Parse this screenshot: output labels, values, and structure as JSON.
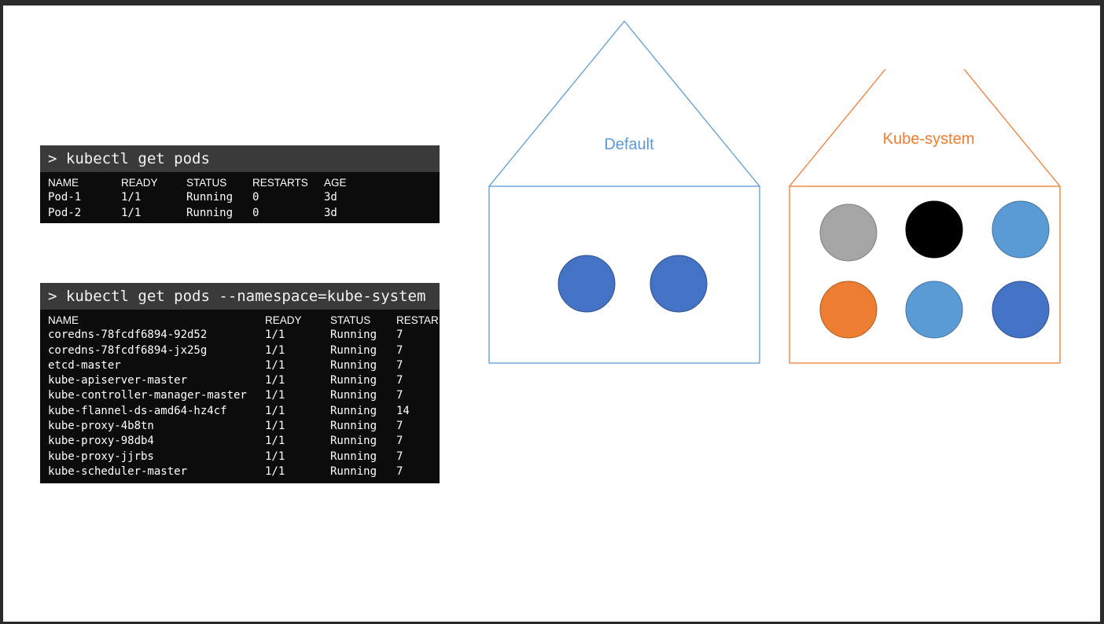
{
  "terminal1": {
    "command": "> kubectl get pods",
    "headers": [
      "NAME",
      "READY",
      "STATUS",
      "RESTARTS",
      "AGE"
    ],
    "rows": [
      [
        "Pod-1",
        "1/1",
        "Running",
        "0",
        "3d"
      ],
      [
        "Pod-2",
        "1/1",
        "Running",
        "0",
        "3d"
      ]
    ]
  },
  "terminal2": {
    "command": "> kubectl get pods --namespace=kube-system",
    "headers": [
      "NAME",
      "READY",
      "STATUS",
      "RESTAR"
    ],
    "rows": [
      [
        "coredns-78fcdf6894-92d52",
        "1/1",
        "Running",
        "7"
      ],
      [
        "coredns-78fcdf6894-jx25g",
        "1/1",
        "Running",
        "7"
      ],
      [
        "etcd-master",
        "1/1",
        "Running",
        "7"
      ],
      [
        "kube-apiserver-master",
        "1/1",
        "Running",
        "7"
      ],
      [
        "kube-controller-manager-master",
        "1/1",
        "Running",
        "7"
      ],
      [
        "kube-flannel-ds-amd64-hz4cf",
        "1/1",
        "Running",
        "14"
      ],
      [
        "kube-proxy-4b8tn",
        "1/1",
        "Running",
        "7"
      ],
      [
        "kube-proxy-98db4",
        "1/1",
        "Running",
        "7"
      ],
      [
        "kube-proxy-jjrbs",
        "1/1",
        "Running",
        "7"
      ],
      [
        "kube-scheduler-master",
        "1/1",
        "Running",
        "7"
      ]
    ]
  },
  "namespaces": {
    "default": {
      "label": "Default",
      "color": "#5b9bd5",
      "pod_colors": [
        "#4472c4",
        "#4472c4"
      ]
    },
    "kube_system": {
      "label": "Kube-system",
      "color": "#ed7d31",
      "pod_colors": [
        "#a5a5a5",
        "#000000",
        "#5b9bd5",
        "#ed7d31",
        "#5b9bd5",
        "#4472c4"
      ]
    }
  }
}
